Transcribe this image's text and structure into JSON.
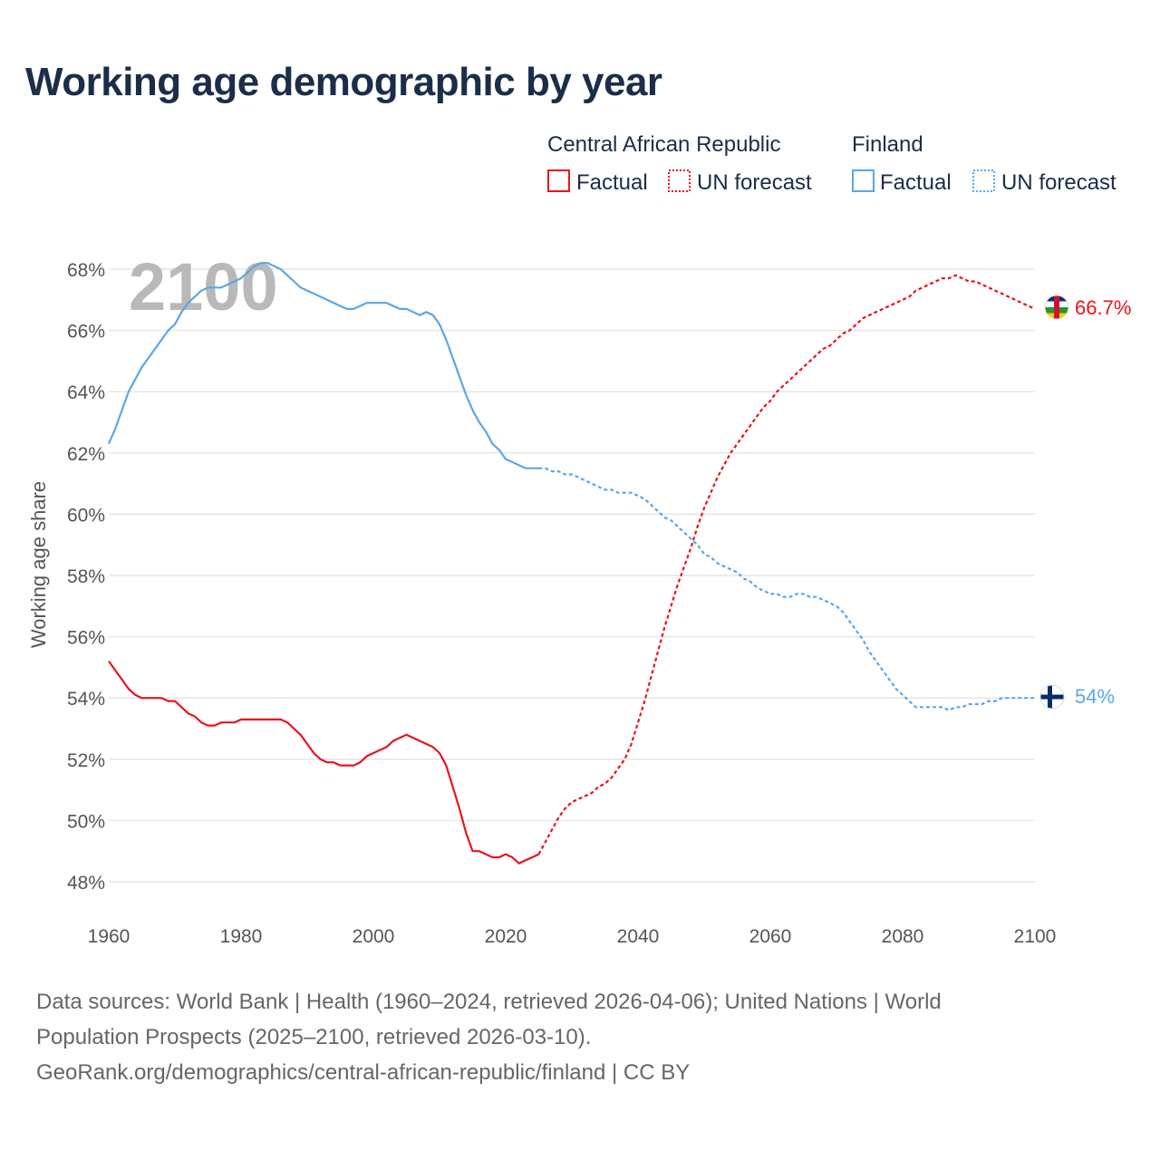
{
  "title": "Working age demographic by year",
  "footer": {
    "sources_line1": "Data sources: World Bank | Health (1960–2024, retrieved 2026-04-06); United Nations | World",
    "sources_line2": "Population Prospects (2025–2100, retrieved 2026-03-10).",
    "credit": "GeoRank.org/demographics/central-african-republic/finland | CC BY"
  },
  "chart_data": {
    "type": "line",
    "title": "Working age demographic by year",
    "xlabel": "",
    "ylabel": "Working age share",
    "xlim": [
      1960,
      2100
    ],
    "ylim": [
      47.5,
      68.5
    ],
    "x_ticks": [
      1960,
      1980,
      2000,
      2020,
      2040,
      2060,
      2080,
      2100
    ],
    "y_ticks": [
      48,
      50,
      52,
      54,
      56,
      58,
      60,
      62,
      64,
      66,
      68
    ],
    "y_tick_suffix": "%",
    "year_marker": "2100",
    "legend": {
      "placement": "top-right",
      "groups": [
        {
          "country": "Central African Republic",
          "factual_label": "Factual",
          "forecast_label": "UN forecast",
          "color": "#e8141c"
        },
        {
          "country": "Finland",
          "factual_label": "Factual",
          "forecast_label": "UN forecast",
          "color": "#5aa7e6"
        }
      ]
    },
    "series": [
      {
        "name": "Central African Republic",
        "color": "#e8141c",
        "end_label": "66.7%",
        "factual": {
          "x": [
            1960,
            1962,
            1963,
            1964,
            1965,
            1966,
            1968,
            1969,
            1970,
            1972,
            1973,
            1974,
            1975,
            1976,
            1977,
            1978,
            1979,
            1980,
            1982,
            1984,
            1985,
            1986,
            1987,
            1988,
            1989,
            1990,
            1991,
            1992,
            1993,
            1994,
            1995,
            1996,
            1997,
            1998,
            1999,
            2000,
            2002,
            2003,
            2004,
            2005,
            2006,
            2007,
            2008,
            2009,
            2010,
            2011,
            2012,
            2013,
            2014,
            2015,
            2016,
            2017,
            2018,
            2019,
            2020,
            2021,
            2022,
            2023,
            2024,
            2025
          ],
          "y": [
            55.2,
            54.6,
            54.3,
            54.1,
            54.0,
            54.0,
            54.0,
            53.9,
            53.9,
            53.5,
            53.4,
            53.2,
            53.1,
            53.1,
            53.2,
            53.2,
            53.2,
            53.3,
            53.3,
            53.3,
            53.3,
            53.3,
            53.2,
            53.0,
            52.8,
            52.5,
            52.2,
            52.0,
            51.9,
            51.9,
            51.8,
            51.8,
            51.8,
            51.9,
            52.1,
            52.2,
            52.4,
            52.6,
            52.7,
            52.8,
            52.7,
            52.6,
            52.5,
            52.4,
            52.2,
            51.8,
            51.1,
            50.4,
            49.6,
            49.0,
            49.0,
            48.9,
            48.8,
            48.8,
            48.9,
            48.8,
            48.6,
            48.7,
            48.8,
            48.9
          ]
        },
        "forecast": {
          "x": [
            2025,
            2026,
            2027,
            2028,
            2029,
            2030,
            2031,
            2032,
            2033,
            2034,
            2035,
            2036,
            2037,
            2038,
            2039,
            2040,
            2041,
            2042,
            2043,
            2044,
            2045,
            2046,
            2047,
            2048,
            2049,
            2050,
            2051,
            2052,
            2053,
            2054,
            2055,
            2056,
            2057,
            2058,
            2059,
            2060,
            2061,
            2062,
            2063,
            2064,
            2065,
            2066,
            2067,
            2068,
            2069,
            2070,
            2071,
            2072,
            2073,
            2074,
            2075,
            2076,
            2077,
            2078,
            2079,
            2080,
            2081,
            2082,
            2083,
            2084,
            2085,
            2086,
            2087,
            2088,
            2089,
            2090,
            2091,
            2092,
            2093,
            2094,
            2095,
            2096,
            2097,
            2098,
            2099,
            2100
          ],
          "y": [
            48.9,
            49.3,
            49.7,
            50.1,
            50.4,
            50.6,
            50.7,
            50.8,
            50.9,
            51.1,
            51.2,
            51.4,
            51.7,
            52.0,
            52.5,
            53.2,
            53.9,
            54.7,
            55.5,
            56.3,
            57.0,
            57.7,
            58.3,
            58.9,
            59.6,
            60.2,
            60.7,
            61.2,
            61.6,
            62.0,
            62.3,
            62.6,
            62.9,
            63.2,
            63.5,
            63.7,
            64.0,
            64.2,
            64.4,
            64.6,
            64.8,
            65.0,
            65.2,
            65.4,
            65.5,
            65.7,
            65.9,
            66.0,
            66.2,
            66.4,
            66.5,
            66.6,
            66.7,
            66.8,
            66.9,
            67.0,
            67.1,
            67.3,
            67.4,
            67.5,
            67.6,
            67.7,
            67.7,
            67.8,
            67.7,
            67.6,
            67.6,
            67.5,
            67.4,
            67.3,
            67.2,
            67.1,
            67.0,
            66.9,
            66.8,
            66.7
          ]
        }
      },
      {
        "name": "Finland",
        "color": "#5aa7e6",
        "end_label": "54%",
        "factual": {
          "x": [
            1960,
            1961,
            1962,
            1963,
            1964,
            1965,
            1966,
            1967,
            1968,
            1969,
            1970,
            1971,
            1972,
            1973,
            1974,
            1975,
            1976,
            1977,
            1978,
            1979,
            1980,
            1981,
            1982,
            1983,
            1984,
            1985,
            1986,
            1987,
            1988,
            1989,
            1990,
            1991,
            1992,
            1993,
            1994,
            1995,
            1996,
            1997,
            1998,
            1999,
            2000,
            2001,
            2002,
            2003,
            2004,
            2005,
            2006,
            2007,
            2008,
            2009,
            2010,
            2011,
            2012,
            2013,
            2014,
            2015,
            2016,
            2017,
            2018,
            2019,
            2020,
            2021,
            2022,
            2023,
            2024,
            2025
          ],
          "y": [
            62.3,
            62.8,
            63.4,
            64.0,
            64.4,
            64.8,
            65.1,
            65.4,
            65.7,
            66.0,
            66.2,
            66.6,
            66.9,
            67.1,
            67.3,
            67.4,
            67.4,
            67.4,
            67.5,
            67.6,
            67.7,
            67.9,
            68.1,
            68.2,
            68.2,
            68.1,
            68.0,
            67.8,
            67.6,
            67.4,
            67.3,
            67.2,
            67.1,
            67.0,
            66.9,
            66.8,
            66.7,
            66.7,
            66.8,
            66.9,
            66.9,
            66.9,
            66.9,
            66.8,
            66.7,
            66.7,
            66.6,
            66.5,
            66.6,
            66.5,
            66.2,
            65.7,
            65.1,
            64.5,
            63.9,
            63.4,
            63.0,
            62.7,
            62.3,
            62.1,
            61.8,
            61.7,
            61.6,
            61.5,
            61.5,
            61.5
          ]
        },
        "forecast": {
          "x": [
            2025,
            2026,
            2027,
            2028,
            2029,
            2030,
            2031,
            2032,
            2033,
            2034,
            2035,
            2036,
            2037,
            2038,
            2039,
            2040,
            2041,
            2042,
            2043,
            2044,
            2045,
            2046,
            2047,
            2048,
            2049,
            2050,
            2051,
            2052,
            2053,
            2054,
            2055,
            2056,
            2057,
            2058,
            2059,
            2060,
            2061,
            2062,
            2063,
            2064,
            2065,
            2066,
            2067,
            2068,
            2069,
            2070,
            2071,
            2072,
            2073,
            2074,
            2075,
            2076,
            2077,
            2078,
            2079,
            2080,
            2081,
            2082,
            2083,
            2084,
            2085,
            2086,
            2087,
            2088,
            2089,
            2090,
            2091,
            2092,
            2093,
            2094,
            2095,
            2096,
            2097,
            2098,
            2099,
            2100
          ],
          "y": [
            61.5,
            61.5,
            61.4,
            61.4,
            61.3,
            61.3,
            61.2,
            61.1,
            61.0,
            60.9,
            60.8,
            60.8,
            60.7,
            60.7,
            60.7,
            60.6,
            60.5,
            60.3,
            60.1,
            59.9,
            59.8,
            59.6,
            59.4,
            59.2,
            59.0,
            58.7,
            58.6,
            58.4,
            58.3,
            58.2,
            58.1,
            57.9,
            57.8,
            57.6,
            57.5,
            57.4,
            57.4,
            57.3,
            57.3,
            57.4,
            57.4,
            57.3,
            57.3,
            57.2,
            57.1,
            57.0,
            56.8,
            56.5,
            56.2,
            55.9,
            55.5,
            55.2,
            54.9,
            54.6,
            54.3,
            54.1,
            53.9,
            53.7,
            53.7,
            53.7,
            53.7,
            53.7,
            53.6,
            53.7,
            53.7,
            53.8,
            53.8,
            53.8,
            53.9,
            53.9,
            54.0,
            54.0,
            54.0,
            54.0,
            54.0,
            54.0
          ]
        }
      }
    ]
  }
}
